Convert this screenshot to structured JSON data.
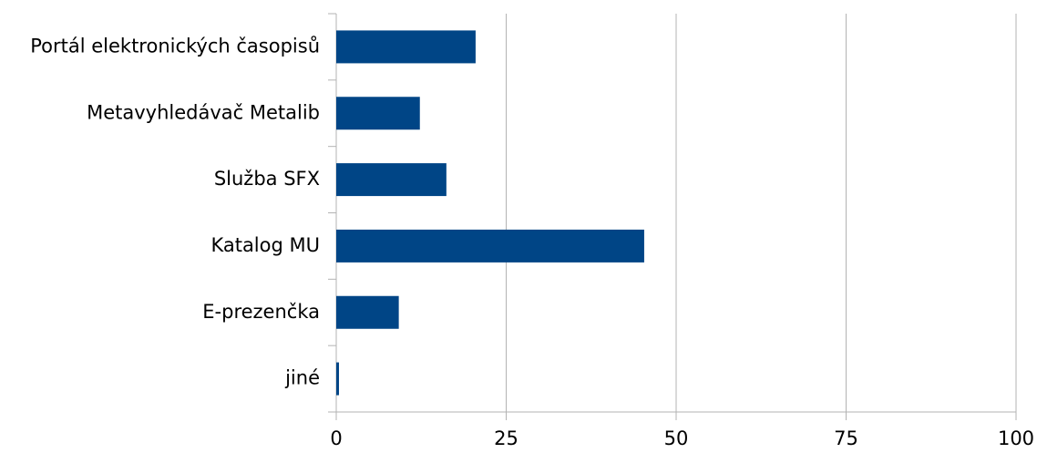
{
  "chart_data": {
    "type": "bar",
    "orientation": "horizontal",
    "categories": [
      "Portál elektronických časopisů",
      "Metavyhledávač Metalib",
      "Služba SFX",
      "Katalog MU",
      "E-prezenčka",
      "jiné"
    ],
    "values": [
      20.5,
      12.3,
      16.2,
      45.3,
      9.2,
      0.4
    ],
    "color": "#004586",
    "xlim": [
      0,
      100
    ],
    "xticks": [
      0,
      25,
      50,
      75,
      100
    ],
    "grid": true
  }
}
